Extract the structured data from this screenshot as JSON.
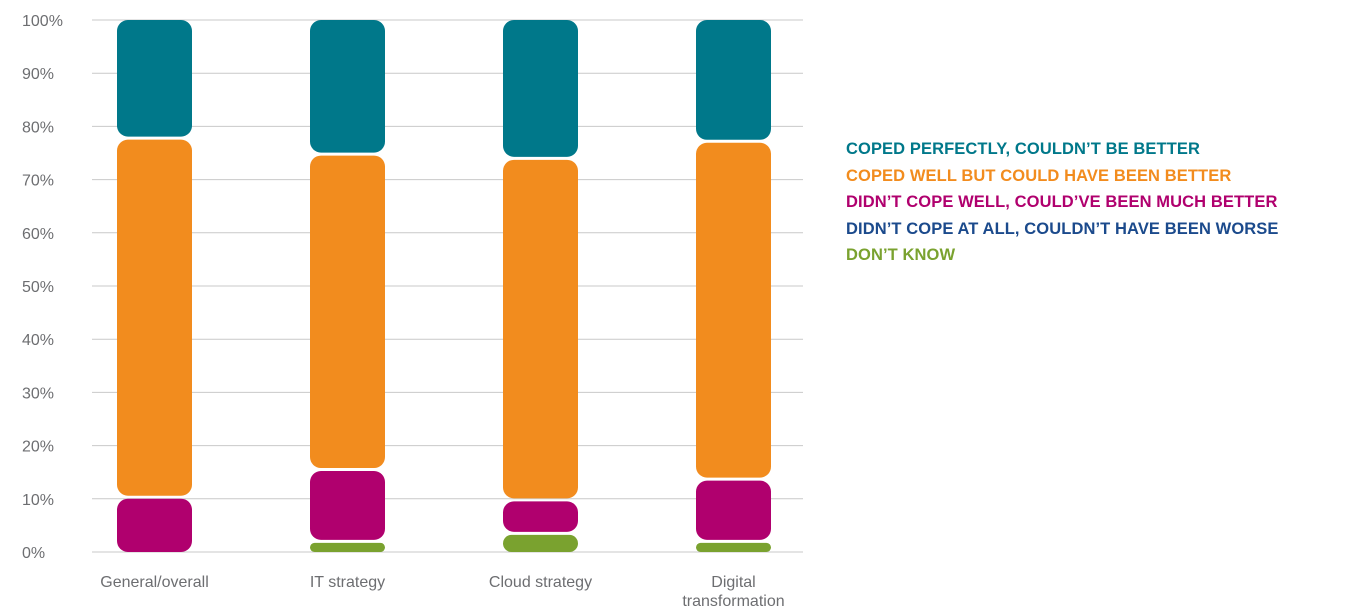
{
  "chart_data": {
    "type": "bar",
    "stacked": true,
    "categories": [
      "General/overall",
      "IT strategy",
      "Cloud strategy",
      "Digital transformation"
    ],
    "category_lines": [
      [
        "General/overall"
      ],
      [
        "IT strategy"
      ],
      [
        "Cloud strategy"
      ],
      [
        "Digital",
        "transformation"
      ]
    ],
    "y_ticks": [
      "0%",
      "10%",
      "20%",
      "30%",
      "40%",
      "50%",
      "60%",
      "70%",
      "80%",
      "90%",
      "100%"
    ],
    "ylim": [
      0,
      100
    ],
    "grid": true,
    "legend_position": "right",
    "series": [
      {
        "name": "DON’T KNOW",
        "color": "#7aa22f",
        "values": [
          0,
          2,
          3.5,
          2
        ]
      },
      {
        "name": "DIDN’T COPE AT ALL, COULDN’T HAVE BEEN WORSE",
        "color": "#1b4a8c",
        "values": [
          0,
          0,
          0,
          0
        ]
      },
      {
        "name": "DIDN’T COPE WELL, COULD’VE BEEN MUCH BETTER",
        "color": "#b0006e",
        "values": [
          10.3,
          13.5,
          6.3,
          11.7
        ]
      },
      {
        "name": "COPED WELL BUT COULD HAVE BEEN BETTER",
        "color": "#f28c1e",
        "values": [
          67.5,
          59.3,
          64.2,
          63.5
        ]
      },
      {
        "name": "COPED PERFECTLY, COULDN’T BE BETTER",
        "color": "#00788a",
        "values": [
          22.2,
          25.2,
          26,
          22.8
        ]
      }
    ],
    "legend_order": [
      4,
      3,
      2,
      1,
      0
    ]
  }
}
